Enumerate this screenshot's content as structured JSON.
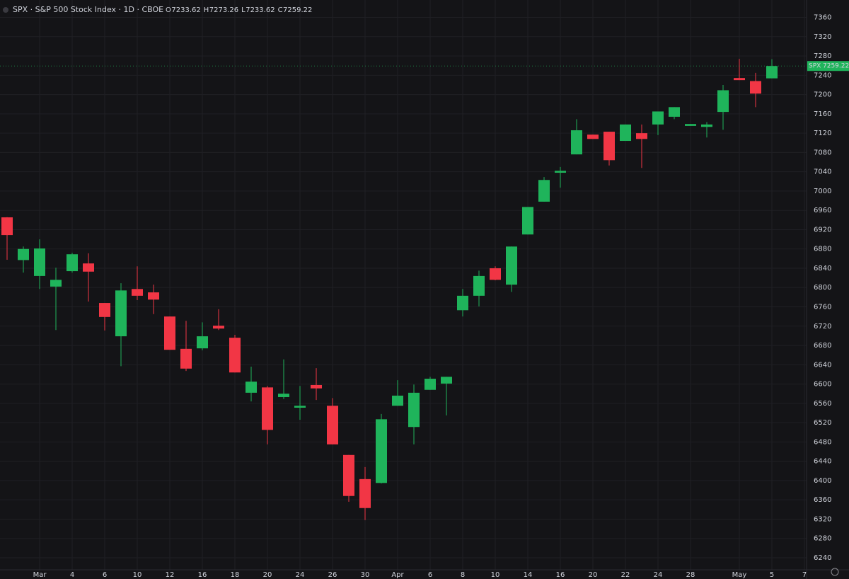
{
  "chart_data": {
    "type": "candlestick",
    "title": "SPX · S&P 500 Stock Index · 1D · CBOE",
    "symbol": "SPX",
    "ohlc_labels": [
      "O",
      "H",
      "L",
      "C"
    ],
    "up_color": "#1fb45b",
    "down_color": "#f23645",
    "grid": true,
    "categories": [
      null,
      null,
      "Mar",
      null,
      "4",
      null,
      "6",
      null,
      "10",
      null,
      "12",
      null,
      "16",
      null,
      "18",
      null,
      "20",
      null,
      "24",
      null,
      "26",
      null,
      "30",
      null,
      "Apr",
      null,
      "6",
      null,
      "8",
      null,
      "10",
      null,
      "14",
      null,
      "16",
      null,
      "20",
      null,
      "22",
      null,
      "24",
      null,
      "28",
      null,
      null,
      "May",
      null,
      "5",
      null,
      "7"
    ],
    "open": [
      6945.5,
      6857,
      6824,
      6802,
      6834,
      6850,
      6768,
      6699,
      6797,
      6790,
      6740,
      6673,
      6674,
      6721,
      6696,
      6582,
      6593,
      6573,
      6551,
      6598,
      6555,
      6453,
      6403,
      6395,
      6555,
      6511,
      6588,
      6601,
      6753,
      6783,
      6840,
      6806,
      6910,
      6978,
      7038,
      7076,
      7117,
      7123,
      7104,
      7120,
      7138,
      7154,
      7135,
      7133,
      7164,
      7234.4,
      7228,
      7233.62,
      null,
      null
    ],
    "high": [
      6946,
      6885,
      6900,
      6841,
      6872,
      6871,
      6768,
      6809,
      6844,
      6806,
      6740,
      6731,
      6728,
      6755,
      6702,
      6636,
      6596,
      6651,
      6596,
      6633,
      6571,
      6453,
      6428,
      6538,
      6608,
      6599,
      6615,
      6615,
      6797,
      6835,
      6844,
      6885,
      6967,
      7029,
      7050,
      7149,
      7117,
      7123,
      7138,
      7138,
      7165,
      7174,
      7139,
      7143,
      7220,
      7274,
      7245,
      7273.26,
      null,
      null
    ],
    "low": [
      6857.5,
      6831,
      6797,
      6712,
      6831,
      6771,
      6711,
      6637,
      6774,
      6745,
      6671,
      6627,
      6670,
      6712,
      6624,
      6564,
      6475,
      6569,
      6526,
      6567,
      6475,
      6356,
      6318,
      6394,
      6555,
      6475,
      6588,
      6535,
      6740,
      6761,
      6815,
      6791,
      6910,
      6978,
      7007,
      7076,
      7108,
      7053,
      7104,
      7048,
      7116,
      7149,
      7135,
      7111,
      7127,
      7230,
      7174,
      7233.62,
      null,
      null
    ],
    "close": [
      6908.8,
      6880,
      6881,
      6816,
      6869,
      6833,
      6739,
      6794,
      6783,
      6775,
      6671,
      6632,
      6699,
      6715,
      6624,
      6605,
      6505,
      6580,
      6555,
      6591,
      6475,
      6368,
      6343,
      6527,
      6576,
      6582,
      6611,
      6615,
      6783,
      6824,
      6816,
      6885,
      6967,
      7023,
      7042,
      7126,
      7108,
      7064,
      7138,
      7108,
      7165,
      7174,
      7139,
      7138,
      7209,
      7230,
      7202,
      7259.22,
      null,
      null
    ],
    "ylim": [
      6215,
      7396
    ],
    "yticks": [
      6240,
      6280,
      6320,
      6360,
      6400,
      6440,
      6480,
      6520,
      6560,
      6600,
      6640,
      6680,
      6720,
      6760,
      6800,
      6840,
      6880,
      6920,
      6960,
      7000,
      7040,
      7080,
      7120,
      7160,
      7200,
      7240,
      7280,
      7320,
      7360
    ]
  }
}
